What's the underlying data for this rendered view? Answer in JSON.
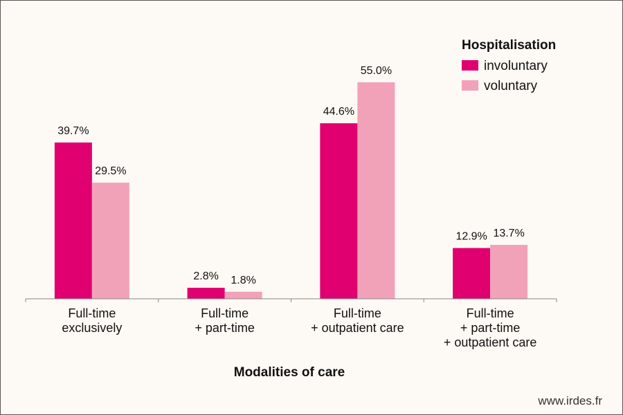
{
  "chart_data": {
    "type": "bar",
    "title": "",
    "xlabel": "Modalities of care",
    "ylabel": "",
    "ylim": [
      0,
      60
    ],
    "grid": false,
    "legend_position": "top-right",
    "legend_title": "Hospitalisation",
    "categories": [
      [
        "Full-time",
        "exclusively"
      ],
      [
        "Full-time",
        "+ part-time"
      ],
      [
        "Full-time",
        "+ outpatient care"
      ],
      [
        "Full-time",
        "+ part-time",
        "+ outpatient care"
      ]
    ],
    "series": [
      {
        "name": "involuntary",
        "color": "#e0006f",
        "values": [
          39.7,
          2.8,
          44.6,
          12.9
        ],
        "labels": [
          "39.7%",
          "2.8%",
          "44.6%",
          "12.9%"
        ]
      },
      {
        "name": "voluntary",
        "color": "#f2a2b8",
        "values": [
          29.5,
          1.8,
          55.0,
          13.7
        ],
        "labels": [
          "29.5%",
          "1.8%",
          "55.0%",
          "13.7%"
        ]
      }
    ]
  },
  "footer": {
    "source": "www.irdes.fr"
  }
}
